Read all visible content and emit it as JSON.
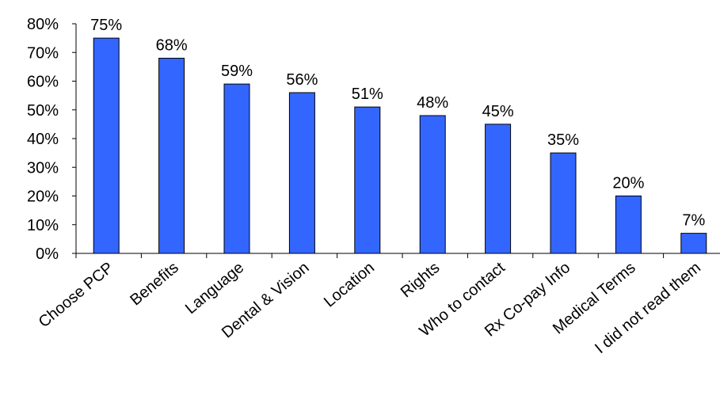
{
  "chart_data": {
    "type": "bar",
    "categories": [
      "Choose PCP",
      "Benefits",
      "Language",
      "Dental & Vision",
      "Location",
      "Rights",
      "Who to contact",
      "Rx Co-pay Info",
      "Medical Terms",
      "I did not read them"
    ],
    "values": [
      75,
      68,
      59,
      56,
      51,
      48,
      45,
      35,
      20,
      7
    ],
    "data_labels": [
      "75%",
      "68%",
      "59%",
      "56%",
      "51%",
      "48%",
      "45%",
      "35%",
      "20%",
      "7%"
    ],
    "y_ticks": [
      "0%",
      "10%",
      "20%",
      "30%",
      "40%",
      "50%",
      "60%",
      "70%",
      "80%"
    ],
    "ylim": [
      0,
      80
    ],
    "title": "",
    "xlabel": "",
    "ylabel": "",
    "grid": false,
    "legend": "none",
    "bar_color": "#3366FF"
  }
}
